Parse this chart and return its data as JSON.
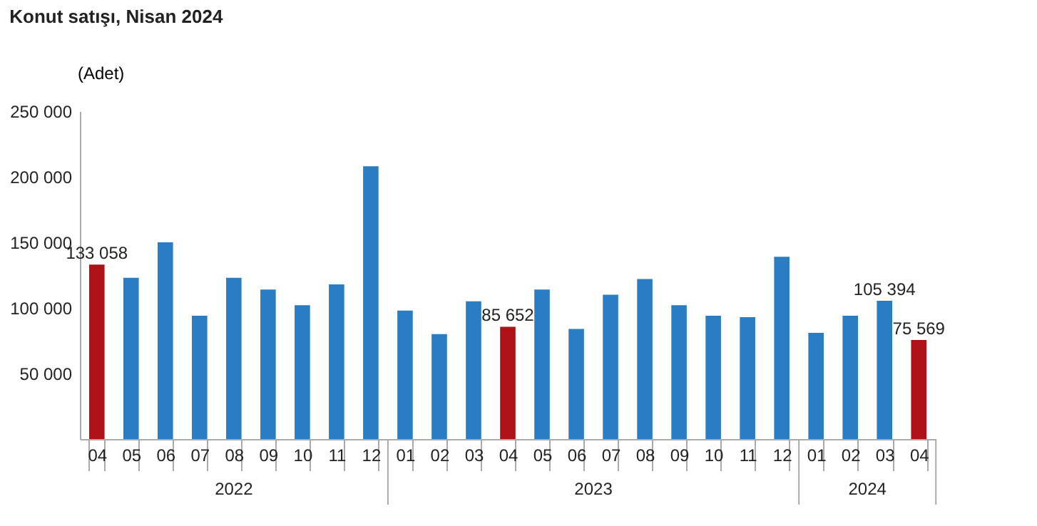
{
  "chart_data": {
    "type": "bar",
    "title": "Konut satışı, Nisan 2024",
    "ylabel": "(Adet)",
    "categories": [
      "04",
      "05",
      "06",
      "07",
      "08",
      "09",
      "10",
      "11",
      "12",
      "01",
      "02",
      "03",
      "04",
      "05",
      "06",
      "07",
      "08",
      "09",
      "10",
      "11",
      "12",
      "01",
      "02",
      "03",
      "04"
    ],
    "values": [
      133058,
      123000,
      150000,
      94000,
      123000,
      114000,
      102000,
      118000,
      208000,
      98000,
      80000,
      105000,
      85652,
      114000,
      84000,
      110000,
      122000,
      102000,
      94000,
      93000,
      139000,
      81000,
      94000,
      105394,
      75569
    ],
    "colors": [
      "#b01116",
      "#2a7dc2",
      "#2a7dc2",
      "#2a7dc2",
      "#2a7dc2",
      "#2a7dc2",
      "#2a7dc2",
      "#2a7dc2",
      "#2a7dc2",
      "#2a7dc2",
      "#2a7dc2",
      "#2a7dc2",
      "#b01116",
      "#2a7dc2",
      "#2a7dc2",
      "#2a7dc2",
      "#2a7dc2",
      "#2a7dc2",
      "#2a7dc2",
      "#2a7dc2",
      "#2a7dc2",
      "#2a7dc2",
      "#2a7dc2",
      "#2a7dc2",
      "#b01116"
    ],
    "value_labels": [
      "133 058",
      null,
      null,
      null,
      null,
      null,
      null,
      null,
      null,
      null,
      null,
      null,
      "85 652",
      null,
      null,
      null,
      null,
      null,
      null,
      null,
      null,
      null,
      null,
      "105 394",
      "75 569"
    ],
    "annotations": [
      "2022",
      "2023",
      "2024"
    ],
    "ylim": [
      0,
      250000
    ],
    "yticks": [
      {
        "value": 50000,
        "label": "50 000"
      },
      {
        "value": 100000,
        "label": "100 000"
      },
      {
        "value": 150000,
        "label": "150 000"
      },
      {
        "value": 200000,
        "label": "200 000"
      },
      {
        "value": 250000,
        "label": "250 000"
      }
    ],
    "grid": false
  }
}
